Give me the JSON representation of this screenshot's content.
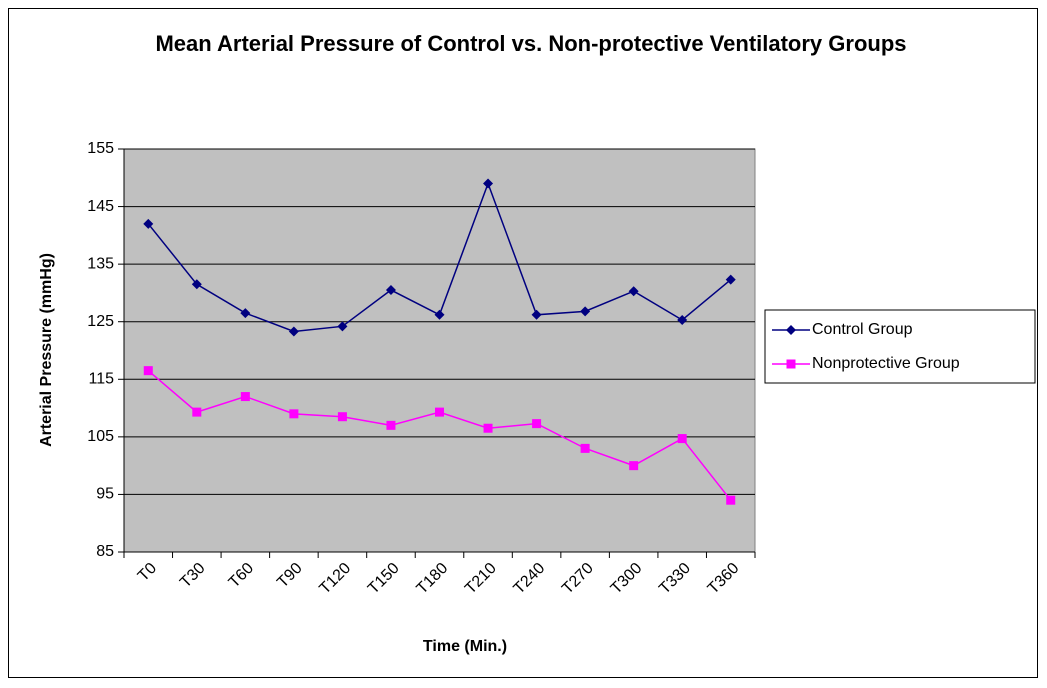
{
  "chart_data": {
    "type": "line",
    "title": "Mean Arterial Pressure of Control vs. Non-protective Ventilatory Groups",
    "x_label": "Time (Min.)",
    "y_label": "Arterial Pressure (mmHg)",
    "categories": [
      "T0",
      "T30",
      "T60",
      "T90",
      "T120",
      "T150",
      "T180",
      "T210",
      "T240",
      "T270",
      "T300",
      "T330",
      "T360"
    ],
    "series": [
      {
        "name": "Control Group",
        "color": "#000080",
        "marker": "diamond",
        "values": [
          142,
          131.5,
          126.5,
          123.3,
          124.2,
          130.5,
          126.2,
          149,
          126.2,
          126.8,
          130.3,
          125.3,
          132.3
        ]
      },
      {
        "name": "Nonprotective Group",
        "color": "#ff00ff",
        "marker": "square",
        "values": [
          116.5,
          109.3,
          112,
          109,
          108.5,
          107,
          109.3,
          106.5,
          107.3,
          103,
          100,
          104.7,
          94
        ]
      }
    ],
    "ylim": [
      85,
      155
    ],
    "yticks": [
      85,
      95,
      105,
      115,
      125,
      135,
      145,
      155
    ],
    "grid": true,
    "plot_background": "#c0c0c0",
    "legend": "right"
  }
}
